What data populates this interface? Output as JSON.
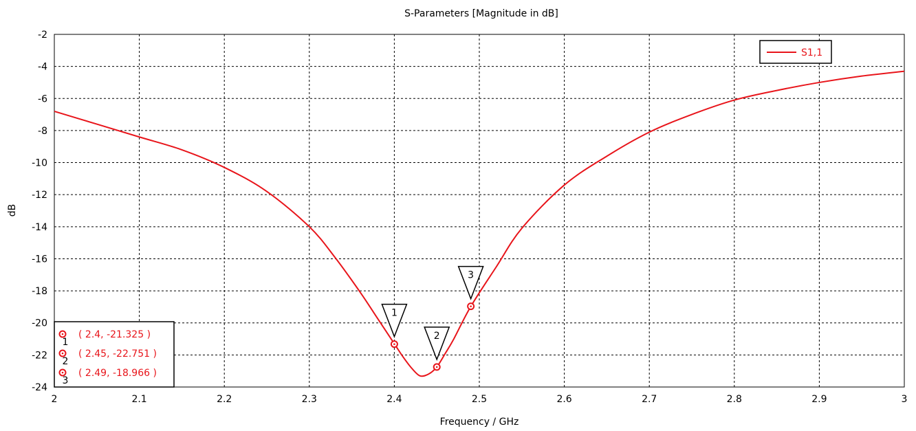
{
  "chart_data": {
    "type": "line",
    "title": "S-Parameters [Magnitude in dB]",
    "xlabel": "Frequency / GHz",
    "ylabel": "dB",
    "xlim": [
      2,
      3
    ],
    "ylim": [
      -24,
      -2
    ],
    "x_ticks": [
      "2",
      "2.1",
      "2.2",
      "2.3",
      "2.4",
      "2.5",
      "2.6",
      "2.7",
      "2.8",
      "2.9",
      "3"
    ],
    "y_ticks": [
      "-2",
      "-4",
      "-6",
      "-8",
      "-10",
      "-12",
      "-14",
      "-16",
      "-18",
      "-20",
      "-22",
      "-24"
    ],
    "grid": true,
    "legend_position": "top-right",
    "series": [
      {
        "name": "S1,1",
        "color": "#e8141a",
        "x": [
          2.0,
          2.05,
          2.1,
          2.15,
          2.2,
          2.25,
          2.3,
          2.33,
          2.36,
          2.38,
          2.4,
          2.41,
          2.42,
          2.43,
          2.44,
          2.45,
          2.46,
          2.47,
          2.49,
          2.52,
          2.55,
          2.6,
          2.65,
          2.7,
          2.75,
          2.8,
          2.85,
          2.9,
          2.95,
          3.0
        ],
        "y": [
          -6.8,
          -7.6,
          -8.4,
          -9.2,
          -10.3,
          -11.8,
          -14.0,
          -15.9,
          -18.1,
          -19.7,
          -21.3,
          -22.1,
          -22.8,
          -23.3,
          -23.2,
          -22.75,
          -21.9,
          -21.0,
          -18.97,
          -16.5,
          -14.1,
          -11.4,
          -9.6,
          -8.1,
          -7.0,
          -6.1,
          -5.5,
          -5.0,
          -4.6,
          -4.3
        ]
      }
    ],
    "markers": [
      {
        "label": "1",
        "x": 2.4,
        "y": -21.325,
        "text": "( 2.4, -21.325 )"
      },
      {
        "label": "2",
        "x": 2.45,
        "y": -22.751,
        "text": "( 2.45, -22.751 )"
      },
      {
        "label": "3",
        "x": 2.49,
        "y": -18.966,
        "text": "( 2.49, -18.966 )"
      }
    ]
  }
}
